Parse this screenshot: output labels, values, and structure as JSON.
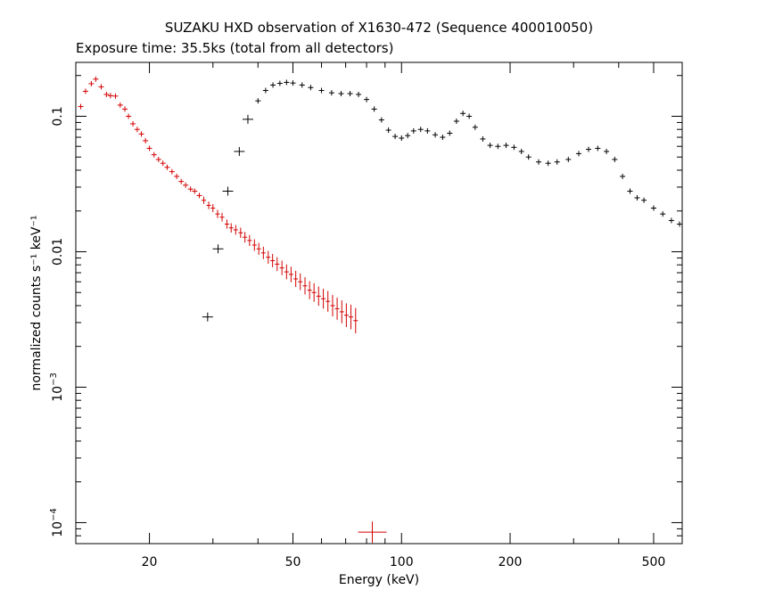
{
  "title": "SUZAKU HXD observation of X1630-472 (Sequence 400010050)",
  "subtitle": "Exposure time: 35.5ks (total from all detectors)",
  "chart_data": {
    "type": "scatter",
    "xlabel": "Energy (keV)",
    "ylabel": "normalized counts s⁻¹ keV⁻¹",
    "xscale": "log",
    "yscale": "log",
    "xlim": [
      12.5,
      600
    ],
    "ylim": [
      7e-05,
      0.25
    ],
    "grid": false,
    "x_ticks": [
      {
        "value": 20,
        "label": "20"
      },
      {
        "value": 50,
        "label": "50"
      },
      {
        "value": 100,
        "label": "100"
      },
      {
        "value": 200,
        "label": "200"
      },
      {
        "value": 500,
        "label": "500"
      }
    ],
    "y_ticks": [
      {
        "value": 0.1,
        "label": "0.1",
        "kind": "plain"
      },
      {
        "value": 0.01,
        "label": "0.01",
        "kind": "plain"
      },
      {
        "value": 0.001,
        "label": "10",
        "exp": "−3",
        "kind": "power"
      },
      {
        "value": 0.0001,
        "label": "10",
        "exp": "−4",
        "kind": "power"
      }
    ],
    "series": [
      {
        "color": "#d40000",
        "points": [
          [
            12.9,
            0.118
          ],
          [
            13.3,
            0.153
          ],
          [
            13.8,
            0.174
          ],
          [
            14.2,
            0.188
          ],
          [
            14.7,
            0.165
          ],
          [
            15.2,
            0.145
          ],
          [
            15.6,
            0.142
          ],
          [
            16.1,
            0.141
          ],
          [
            16.6,
            0.121
          ],
          [
            17.1,
            0.113
          ],
          [
            17.5,
            0.1
          ],
          [
            18.0,
            0.088
          ],
          [
            18.5,
            0.08
          ],
          [
            19.0,
            0.074
          ],
          [
            19.5,
            0.066
          ],
          [
            20.0,
            0.058
          ],
          [
            20.6,
            0.052
          ],
          [
            21.2,
            0.048
          ],
          [
            21.8,
            0.045
          ],
          [
            22.4,
            0.042
          ],
          [
            23.1,
            0.039
          ],
          [
            23.8,
            0.036
          ],
          [
            24.5,
            0.033
          ],
          [
            25.2,
            0.031
          ],
          [
            26.0,
            0.029
          ],
          [
            26.7,
            0.028
          ],
          [
            27.5,
            0.026
          ],
          [
            28.3,
            0.024
          ],
          [
            29.2,
            0.022
          ],
          [
            30.0,
            0.021
          ],
          [
            30.9,
            0.019
          ],
          [
            31.8,
            0.018
          ],
          [
            32.8,
            0.016
          ],
          [
            33.7,
            0.015
          ],
          [
            34.7,
            0.0145
          ],
          [
            35.8,
            0.0138
          ],
          [
            36.8,
            0.0128
          ],
          [
            37.9,
            0.0121
          ],
          [
            39.1,
            0.0112
          ],
          [
            40.2,
            0.0105
          ],
          [
            41.4,
            0.0098
          ],
          [
            42.7,
            0.0091
          ],
          [
            43.9,
            0.0086
          ],
          [
            45.2,
            0.0081
          ],
          [
            46.6,
            0.0076
          ],
          [
            48.0,
            0.0071
          ],
          [
            49.4,
            0.0068
          ],
          [
            50.9,
            0.0063
          ],
          [
            52.4,
            0.006
          ],
          [
            54.0,
            0.0056
          ],
          [
            55.6,
            0.0052
          ],
          [
            57.2,
            0.005
          ],
          [
            58.9,
            0.0047
          ],
          [
            60.7,
            0.0045
          ],
          [
            62.5,
            0.0043
          ],
          [
            64.4,
            0.004
          ],
          [
            66.3,
            0.0038
          ],
          [
            68.3,
            0.0036
          ],
          [
            70.3,
            0.0034
          ],
          [
            72.4,
            0.0033
          ],
          [
            74.6,
            0.0031
          ],
          [
            83.0,
            8.5e-05
          ]
        ]
      },
      {
        "color": "#000000",
        "points": [
          [
            29.0,
            0.0033
          ],
          [
            31.0,
            0.0105
          ],
          [
            33.0,
            0.028
          ],
          [
            35.5,
            0.055
          ],
          [
            37.5,
            0.095
          ],
          [
            40.0,
            0.13
          ],
          [
            42.0,
            0.155
          ],
          [
            44.0,
            0.17
          ],
          [
            46.0,
            0.175
          ],
          [
            48.0,
            0.178
          ],
          [
            50.0,
            0.176
          ],
          [
            53.0,
            0.17
          ],
          [
            56.0,
            0.163
          ],
          [
            60.0,
            0.155
          ],
          [
            64.0,
            0.149
          ],
          [
            68.0,
            0.147
          ],
          [
            72.0,
            0.147
          ],
          [
            76.0,
            0.145
          ],
          [
            80.0,
            0.133
          ],
          [
            84.0,
            0.113
          ],
          [
            88.0,
            0.094
          ],
          [
            92.0,
            0.079
          ],
          [
            96.0,
            0.071
          ],
          [
            100.0,
            0.069
          ],
          [
            104.0,
            0.072
          ],
          [
            108.0,
            0.078
          ],
          [
            113.0,
            0.08
          ],
          [
            118.0,
            0.078
          ],
          [
            124.0,
            0.073
          ],
          [
            130.0,
            0.07
          ],
          [
            136.0,
            0.075
          ],
          [
            142.0,
            0.092
          ],
          [
            148.0,
            0.105
          ],
          [
            154.0,
            0.1
          ],
          [
            160.0,
            0.083
          ],
          [
            168.0,
            0.068
          ],
          [
            176.0,
            0.061
          ],
          [
            185.0,
            0.06
          ],
          [
            195.0,
            0.061
          ],
          [
            205.0,
            0.059
          ],
          [
            215.0,
            0.055
          ],
          [
            225.0,
            0.05
          ],
          [
            240.0,
            0.046
          ],
          [
            255.0,
            0.045
          ],
          [
            270.0,
            0.046
          ],
          [
            290.0,
            0.048
          ],
          [
            310.0,
            0.053
          ],
          [
            330.0,
            0.057
          ],
          [
            350.0,
            0.058
          ],
          [
            370.0,
            0.055
          ],
          [
            390.0,
            0.048
          ],
          [
            410.0,
            0.036
          ],
          [
            430.0,
            0.028
          ],
          [
            450.0,
            0.025
          ],
          [
            470.0,
            0.024
          ],
          [
            500.0,
            0.021
          ],
          [
            530.0,
            0.019
          ],
          [
            560.0,
            0.017
          ],
          [
            590.0,
            0.016
          ]
        ]
      }
    ]
  }
}
